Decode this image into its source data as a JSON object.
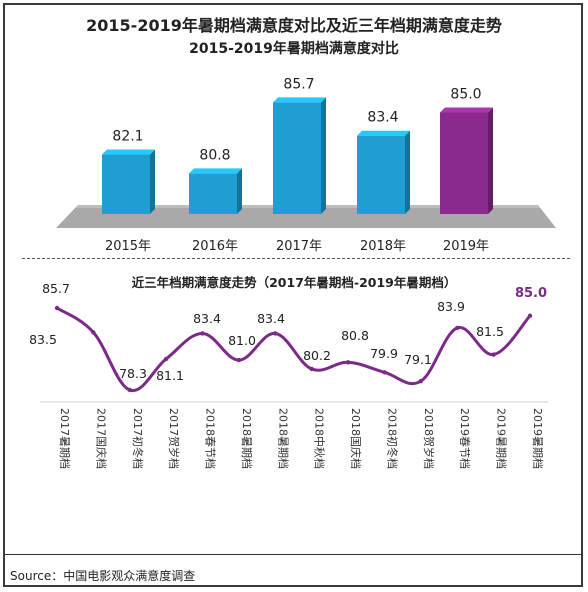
{
  "chart_data": [
    {
      "type": "bar",
      "title": "2015-2019年暑期档满意度对比及近三年档期满意度走势",
      "subtitle": "2015-2019年暑期档满意度对比",
      "categories": [
        "2015年",
        "2016年",
        "2017年",
        "2018年",
        "2019年"
      ],
      "values": [
        82.1,
        80.8,
        85.7,
        83.4,
        85.0
      ],
      "value_labels": [
        "82.1",
        "80.8",
        "85.7",
        "83.4",
        "85.0"
      ],
      "colors": [
        "#1f9fd1",
        "#1f9fd1",
        "#1f9fd1",
        "#1f9fd1",
        "#8b2a8e"
      ],
      "grid": false
    },
    {
      "type": "line",
      "title": "近三年档期满意度走势（2017年暑期档-2019年暑期档）",
      "categories": [
        "2017暑期档",
        "2017国庆档",
        "2017初冬档",
        "2017贺岁档",
        "2018春节档",
        "2018暑期档",
        "2018暑期档",
        "2018中秋档",
        "2018国庆档",
        "2018初冬档",
        "2018贺岁档",
        "2019春节档",
        "2019暑期档",
        "2019暑期档"
      ],
      "values": [
        85.7,
        83.5,
        78.3,
        81.1,
        83.4,
        81.0,
        83.4,
        80.2,
        80.8,
        79.9,
        79.1,
        83.9,
        81.5,
        85.0
      ],
      "value_labels": [
        "85.7",
        "83.5",
        "78.3",
        "81.1",
        "83.4",
        "81.0",
        "83.4",
        "80.2",
        "80.8",
        "79.9",
        "79.1",
        "83.9",
        "81.5",
        "85.0"
      ],
      "line_color": "#7b2a87",
      "highlight_color": "#7b2a87",
      "grid": false
    }
  ],
  "source": "Source：中国电影观众满意度调查"
}
